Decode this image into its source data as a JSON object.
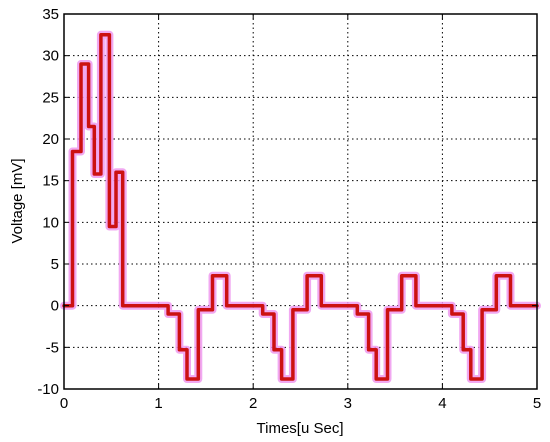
{
  "chart_data": {
    "type": "line",
    "title": "",
    "xlabel": "Times[u Sec]",
    "ylabel": "Voltage [mV]",
    "xlim": [
      0,
      5
    ],
    "ylim": [
      -10,
      35
    ],
    "grid": true,
    "x_ticks": [
      0,
      1,
      2,
      3,
      4,
      5
    ],
    "y_ticks": [
      -10,
      -5,
      0,
      5,
      10,
      15,
      20,
      25,
      30,
      35
    ],
    "x_tick_labels": [
      "0",
      "1",
      "2",
      "3",
      "4",
      "5"
    ],
    "y_tick_labels": [
      "-10",
      "-5",
      "0",
      "5",
      "10",
      "15",
      "20",
      "25",
      "30",
      "35"
    ],
    "series": [
      {
        "line_color": "#cc1111",
        "glow_color": "#ee99ee",
        "step": true,
        "x": [
          0.0,
          0.09,
          0.18,
          0.26,
          0.32,
          0.39,
          0.48,
          0.55,
          0.62,
          0.7,
          0.8,
          1.0,
          1.1,
          1.22,
          1.3,
          1.42,
          1.57,
          1.72,
          1.95,
          2.1,
          2.22,
          2.3,
          2.42,
          2.57,
          2.72,
          2.95,
          3.1,
          3.22,
          3.3,
          3.42,
          3.57,
          3.72,
          3.95,
          4.1,
          4.22,
          4.3,
          4.42,
          4.57,
          4.72,
          4.95
        ],
        "y": [
          0,
          18.5,
          29,
          21.5,
          15.8,
          32.5,
          9.5,
          16,
          0,
          0,
          0,
          0,
          -1,
          -5.3,
          -8.8,
          -0.5,
          3.6,
          0,
          0,
          -1,
          -5.3,
          -8.8,
          -0.5,
          3.6,
          0,
          0,
          -1,
          -5.3,
          -8.8,
          -0.5,
          3.6,
          0,
          0,
          -1,
          -5.3,
          -8.8,
          -0.5,
          3.6,
          0,
          0
        ]
      }
    ]
  }
}
